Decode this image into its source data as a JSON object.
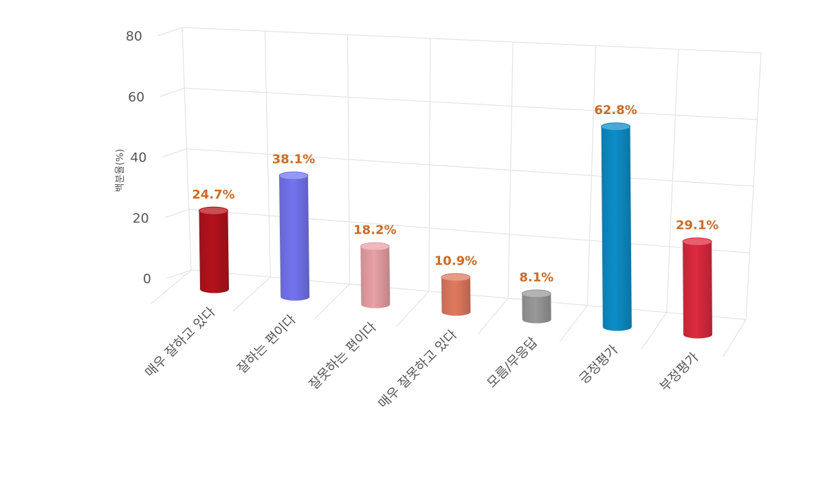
{
  "chart_data": {
    "type": "bar",
    "ylabel": "백분율(%)",
    "ylim": [
      0,
      80
    ],
    "yticks": [
      0,
      20,
      40,
      60,
      80
    ],
    "grid": true,
    "categories": [
      "매우 잘하고 있다",
      "잘하는 편이다",
      "잘못하는 편이다",
      "매우 잘못하고 있다",
      "모름/무응답",
      "긍정평가",
      "부정평가"
    ],
    "values": [
      24.7,
      38.1,
      18.2,
      10.9,
      8.1,
      62.8,
      29.1
    ],
    "data_labels": [
      "24.7%",
      "38.1%",
      "18.2%",
      "10.9%",
      "8.1%",
      "62.8%",
      "29.1%"
    ],
    "colors": [
      "#b5121b",
      "#7474f0",
      "#e9a1a6",
      "#e07a5f",
      "#999999",
      "#0c8dc8",
      "#dc2a3e"
    ],
    "label_color": "#d4691e"
  }
}
